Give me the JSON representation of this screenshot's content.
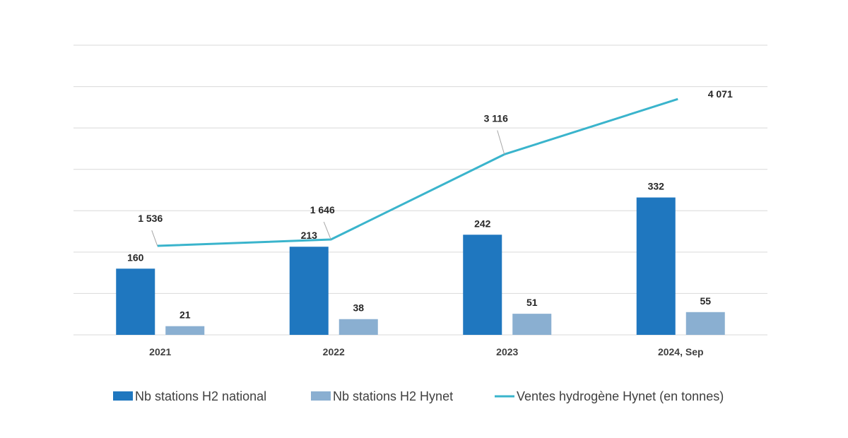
{
  "chart_data": {
    "type": "bar",
    "categories": [
      "2021",
      "2022",
      "2023",
      "2024, Sep"
    ],
    "series": [
      {
        "name": "Nb stations H2 national",
        "kind": "bar",
        "axis": "primary",
        "color": "#1f77bf",
        "values": [
          160,
          213,
          242,
          332
        ],
        "labels": [
          "160",
          "213",
          "242",
          "332"
        ]
      },
      {
        "name": "Nb stations H2 Hynet",
        "kind": "bar",
        "axis": "primary",
        "color": "#8aafd1",
        "values": [
          21,
          38,
          51,
          55
        ],
        "labels": [
          "21",
          "38",
          "51",
          "55"
        ]
      },
      {
        "name": "Ventes hydrogène Hynet (en tonnes)",
        "kind": "line",
        "axis": "secondary",
        "color": "#3ab4cc",
        "values": [
          1536,
          1646,
          3116,
          4071
        ],
        "labels": [
          "1 536",
          "1 646",
          "3 116",
          "4 071"
        ]
      }
    ],
    "ylim": [
      0,
      700
    ],
    "y2lim": [
      0,
      5000
    ],
    "grid": true,
    "legend": "bottom",
    "colors": {
      "grid": "#d9d9d9",
      "leader": "#a6a6a6"
    }
  }
}
